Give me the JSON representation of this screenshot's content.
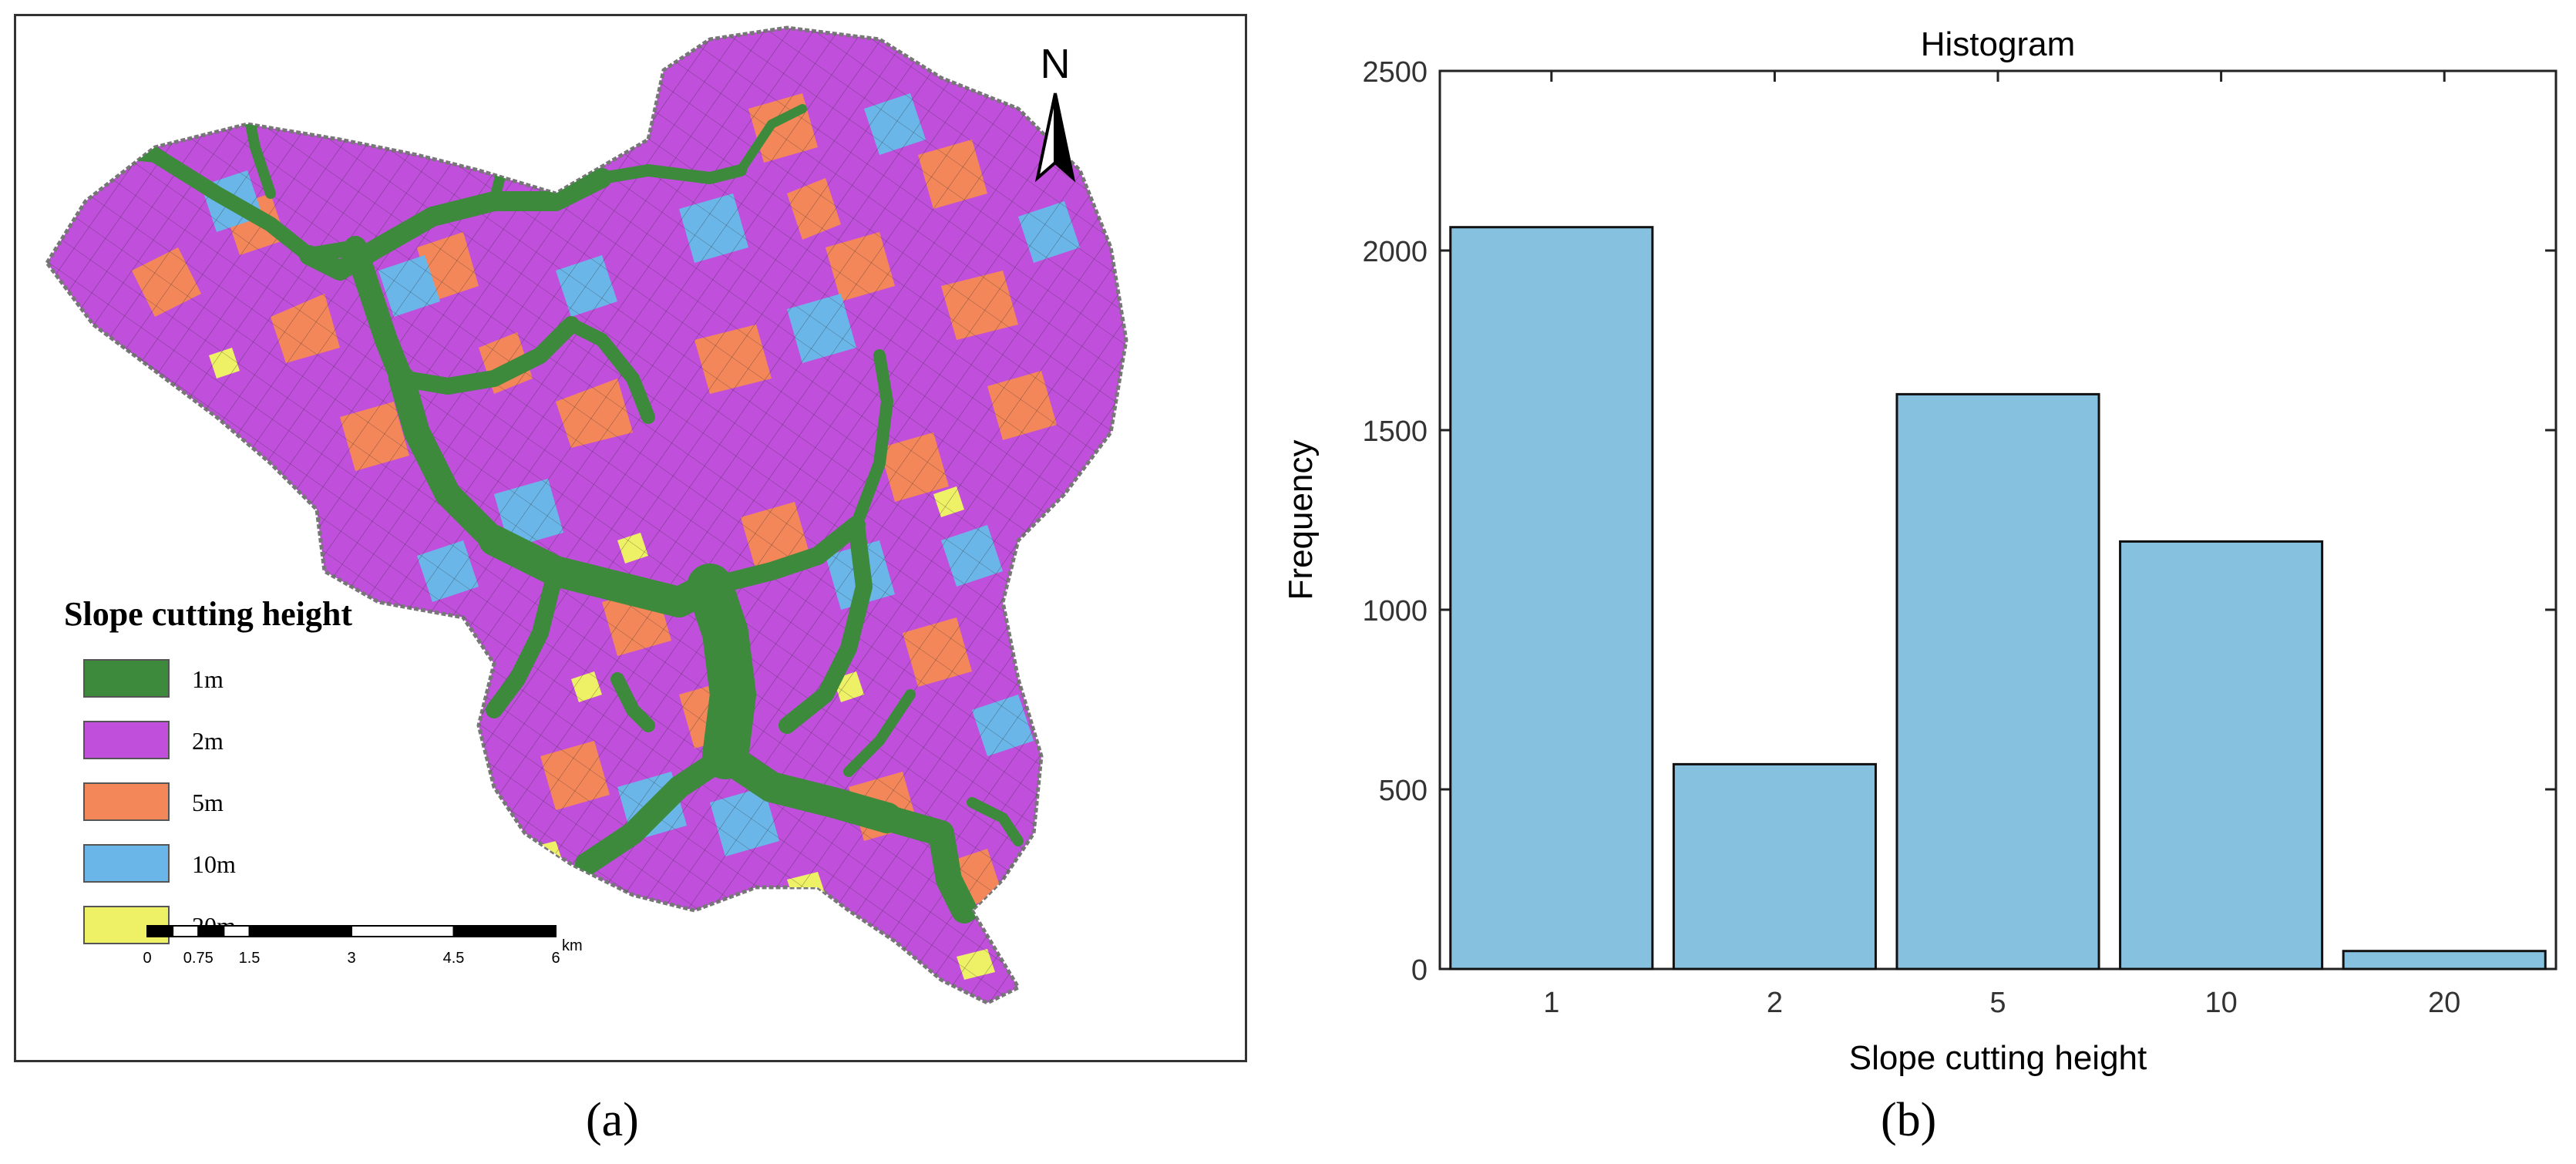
{
  "panel_a": {
    "caption": "(a)",
    "north_label": "N",
    "legend": {
      "title": "Slope cutting height",
      "items": [
        {
          "label": "1m",
          "color": "#3d8a3d"
        },
        {
          "label": "2m",
          "color": "#c04fdc"
        },
        {
          "label": "5m",
          "color": "#f3875a"
        },
        {
          "label": "10m",
          "color": "#6bb6e8"
        },
        {
          "label": "20m",
          "color": "#eef065"
        }
      ]
    },
    "scale_bar": {
      "ticks": [
        "0",
        "0.75",
        "1.5",
        "3",
        "4.5",
        "6"
      ],
      "unit": "km"
    }
  },
  "panel_b": {
    "caption": "(b)"
  },
  "chart_data": {
    "type": "bar",
    "title": "Histogram",
    "xlabel": "Slope cutting height",
    "ylabel": "Frequency",
    "categories": [
      "1",
      "2",
      "5",
      "10",
      "20"
    ],
    "values": [
      2065,
      570,
      1600,
      1190,
      50
    ],
    "ylim": [
      0,
      2500
    ],
    "yticks": [
      0,
      500,
      1000,
      1500,
      2000,
      2500
    ],
    "bar_color": "#87c1e0",
    "grid": false,
    "legend": "none"
  }
}
